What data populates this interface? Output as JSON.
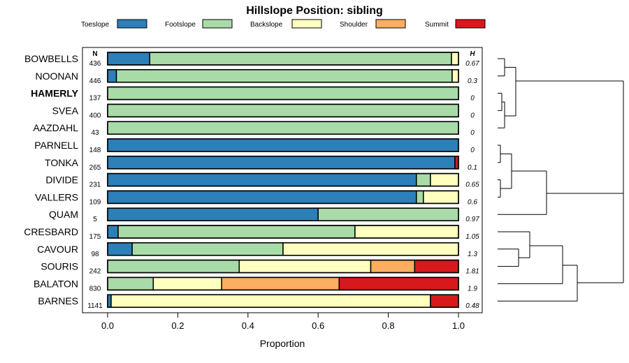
{
  "chart_data": {
    "type": "bar",
    "orientation": "horizontal",
    "stacked": true,
    "title": "Hillslope Position: sibling",
    "xlabel": "Proportion",
    "ylabel": "",
    "xlim": [
      0,
      1
    ],
    "x_ticks": [
      "0.0",
      "0.2",
      "0.4",
      "0.6",
      "0.8",
      "1.0"
    ],
    "n_header": "N",
    "h_header": "H",
    "highlighted": "HAMERLY",
    "series": [
      {
        "name": "Toeslope",
        "color": "#2c7fb8"
      },
      {
        "name": "Footslope",
        "color": "#a8dba8"
      },
      {
        "name": "Backslope",
        "color": "#ffffbf"
      },
      {
        "name": "Shoulder",
        "color": "#fdae61"
      },
      {
        "name": "Summit",
        "color": "#d7191c"
      }
    ],
    "rows": [
      {
        "label": "BOWBELLS",
        "n": "436",
        "h": "0.67",
        "values": [
          0.12,
          0.86,
          0.02,
          0,
          0
        ]
      },
      {
        "label": "NOONAN",
        "n": "446",
        "h": "0.3",
        "values": [
          0.025,
          0.957,
          0.018,
          0,
          0
        ]
      },
      {
        "label": "HAMERLY",
        "n": "137",
        "h": "0",
        "values": [
          0,
          1,
          0,
          0,
          0
        ]
      },
      {
        "label": "SVEA",
        "n": "400",
        "h": "0",
        "values": [
          0,
          1,
          0,
          0,
          0
        ]
      },
      {
        "label": "AAZDAHL",
        "n": "43",
        "h": "0",
        "values": [
          0,
          1,
          0,
          0,
          0
        ]
      },
      {
        "label": "PARNELL",
        "n": "148",
        "h": "0",
        "values": [
          1,
          0,
          0,
          0,
          0
        ]
      },
      {
        "label": "TONKA",
        "n": "265",
        "h": "0.1",
        "values": [
          0.99,
          0,
          0,
          0,
          0.01
        ]
      },
      {
        "label": "DIVIDE",
        "n": "231",
        "h": "0.65",
        "values": [
          0.88,
          0.04,
          0.08,
          0,
          0
        ]
      },
      {
        "label": "VALLERS",
        "n": "109",
        "h": "0.6",
        "values": [
          0.88,
          0.02,
          0.1,
          0,
          0
        ]
      },
      {
        "label": "QUAM",
        "n": "5",
        "h": "0.97",
        "values": [
          0.6,
          0.4,
          0,
          0,
          0
        ]
      },
      {
        "label": "CRESBARD",
        "n": "175",
        "h": "1.05",
        "values": [
          0.03,
          0.675,
          0.295,
          0,
          0
        ]
      },
      {
        "label": "CAVOUR",
        "n": "98",
        "h": "1.3",
        "values": [
          0.07,
          0.43,
          0.5,
          0,
          0
        ]
      },
      {
        "label": "SOURIS",
        "n": "242",
        "h": "1.81",
        "values": [
          0,
          0.375,
          0.375,
          0.125,
          0.125
        ]
      },
      {
        "label": "BALATON",
        "n": "830",
        "h": "1.9",
        "values": [
          0,
          0.13,
          0.195,
          0.335,
          0.34
        ]
      },
      {
        "label": "BARNES",
        "n": "1141",
        "h": "0.48",
        "values": [
          0.01,
          0,
          0.91,
          0,
          0.08
        ]
      }
    ]
  }
}
